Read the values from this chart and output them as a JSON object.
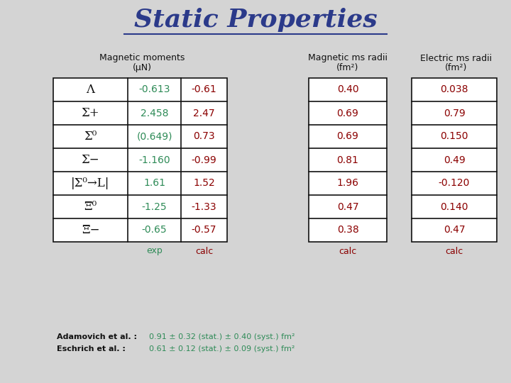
{
  "title": "Static Properties",
  "bg_color": "#d4d4d4",
  "rows": [
    "Λ",
    "Σ+",
    "Σ⁰",
    "Σ−",
    "|Σ⁰→L|",
    "Ξ⁰",
    "Ξ−"
  ],
  "mag_mom_exp": [
    "-0.613",
    "2.458",
    "(0.649)",
    "-1.160",
    "1.61",
    "-1.25",
    "-0.65"
  ],
  "mag_mom_calc": [
    "-0.61",
    "2.47",
    "0.73",
    "-0.99",
    "1.52",
    "-1.33",
    "-0.57"
  ],
  "mag_rms_calc": [
    "0.40",
    "0.69",
    "0.69",
    "0.81",
    "1.96",
    "0.47",
    "0.38"
  ],
  "elec_rms_calc": [
    "0.038",
    "0.79",
    "0.150",
    "0.49",
    "-0.120",
    "0.140",
    "0.47"
  ],
  "col_header1a": "Magnetic moments",
  "col_header1b": "(μN)",
  "col_header2a": "Magnetic ms radii",
  "col_header2b": "(fm²)",
  "col_header3a": "Electric ms radii",
  "col_header3b": "(fm²)",
  "sub_header_exp": "exp",
  "sub_header_calc": "calc",
  "footnote1_label": "Adamovich et al. :",
  "footnote1_value": "0.91 ± 0.32 (stat.) ± 0.40 (syst.) fm²",
  "footnote2_label": "Eschrich et al. :",
  "footnote2_value": "0.61 ± 0.12 (stat.) ± 0.09 (syst.) fm²",
  "title_color": "#2b3a8a",
  "row_label_color": "#111111",
  "exp_color": "#2e8b57",
  "calc_color": "#8b0000",
  "header_color": "#111111",
  "footnote_label_color": "#111111",
  "footnote_value_color": "#2e8b57"
}
